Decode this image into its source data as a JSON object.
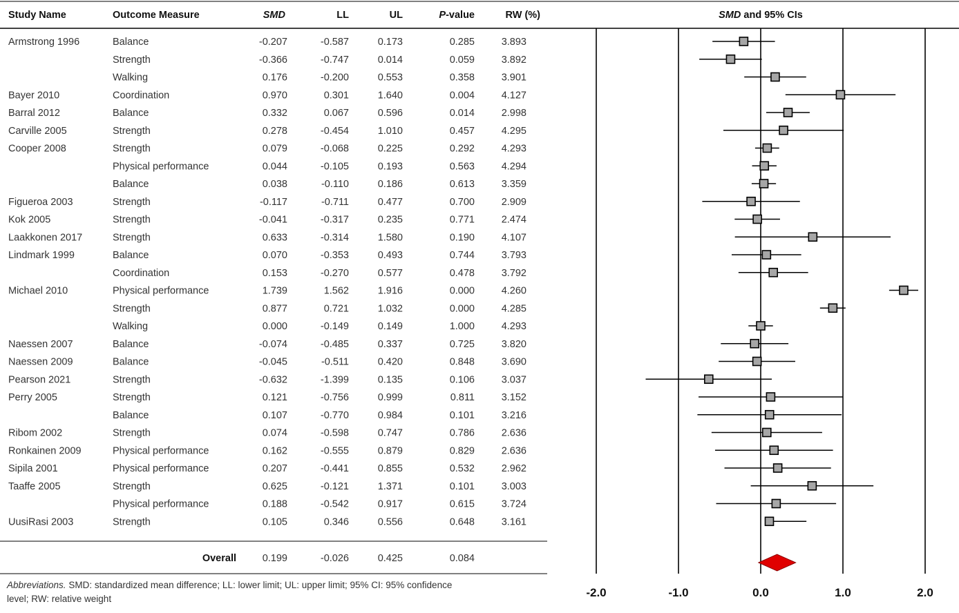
{
  "table": {
    "headers": {
      "study": "Study Name",
      "outcome": "Outcome Measure",
      "smd": "SMD",
      "ll": "LL",
      "ul": "UL",
      "p": "P",
      "p_suffix": "-value",
      "rw": "RW (%)",
      "plot_smd": "SMD",
      "plot_rest": " and 95% CIs"
    },
    "overall_label": "Overall"
  },
  "footnote": {
    "abbr_label": "Abbreviations.",
    "text": " SMD: standardized mean difference; LL: lower limit; UL: upper limit; 95% CI: 95% confidence level; RW: relative weight"
  },
  "colors": {
    "marker_fill": "#a6a6a6",
    "diamond": "#e00000",
    "line": "#000000"
  },
  "chart_data": {
    "type": "forest",
    "xlim": [
      -2.0,
      2.0
    ],
    "xticks": [
      "-2.0",
      "-1.0",
      "0.0",
      "1.0",
      "2.0"
    ],
    "tick_values": [
      -2.0,
      -1.0,
      0.0,
      1.0,
      2.0
    ],
    "grid": "vertical lines at ticks",
    "rows": [
      {
        "study": "Armstrong 1996",
        "outcome": "Balance",
        "smd": -0.207,
        "ll": -0.587,
        "ul": 0.173,
        "p": 0.285,
        "rw": 3.893
      },
      {
        "study": "",
        "outcome": "Strength",
        "smd": -0.366,
        "ll": -0.747,
        "ul": 0.014,
        "p": 0.059,
        "rw": 3.892
      },
      {
        "study": "",
        "outcome": "Walking",
        "smd": 0.176,
        "ll": -0.2,
        "ul": 0.553,
        "p": 0.358,
        "rw": 3.901
      },
      {
        "study": "Bayer 2010",
        "outcome": "Coordination",
        "smd": 0.97,
        "ll": 0.301,
        "ul": 1.64,
        "p": 0.004,
        "rw": 4.127
      },
      {
        "study": "Barral 2012",
        "outcome": "Balance",
        "smd": 0.332,
        "ll": 0.067,
        "ul": 0.596,
        "p": 0.014,
        "rw": 2.998
      },
      {
        "study": "Carville 2005",
        "outcome": "Strength",
        "smd": 0.278,
        "ll": -0.454,
        "ul": 1.01,
        "p": 0.457,
        "rw": 4.295
      },
      {
        "study": "Cooper 2008",
        "outcome": "Strength",
        "smd": 0.079,
        "ll": -0.068,
        "ul": 0.225,
        "p": 0.292,
        "rw": 4.293
      },
      {
        "study": "",
        "outcome": "Physical performance",
        "smd": 0.044,
        "ll": -0.105,
        "ul": 0.193,
        "p": 0.563,
        "rw": 4.294
      },
      {
        "study": "",
        "outcome": "Balance",
        "smd": 0.038,
        "ll": -0.11,
        "ul": 0.186,
        "p": 0.613,
        "rw": 3.359
      },
      {
        "study": "Figueroa 2003",
        "outcome": "Strength",
        "smd": -0.117,
        "ll": -0.711,
        "ul": 0.477,
        "p": 0.7,
        "rw": 2.909
      },
      {
        "study": "Kok 2005",
        "outcome": "Strength",
        "smd": -0.041,
        "ll": -0.317,
        "ul": 0.235,
        "p": 0.771,
        "rw": 2.474
      },
      {
        "study": "Laakkonen 2017",
        "outcome": "Strength",
        "smd": 0.633,
        "ll": -0.314,
        "ul": 1.58,
        "p": 0.19,
        "rw": 4.107
      },
      {
        "study": "Lindmark 1999",
        "outcome": "Balance",
        "smd": 0.07,
        "ll": -0.353,
        "ul": 0.493,
        "p": 0.744,
        "rw": 3.793
      },
      {
        "study": "",
        "outcome": "Coordination",
        "smd": 0.153,
        "ll": -0.27,
        "ul": 0.577,
        "p": 0.478,
        "rw": 3.792
      },
      {
        "study": "Michael 2010",
        "outcome": "Physical performance",
        "smd": 1.739,
        "ll": 1.562,
        "ul": 1.916,
        "p": 0.0,
        "rw": 4.26
      },
      {
        "study": "",
        "outcome": "Strength",
        "smd": 0.877,
        "ll": 0.721,
        "ul": 1.032,
        "p": 0.0,
        "rw": 4.285
      },
      {
        "study": "",
        "outcome": "Walking",
        "smd": 0.0,
        "ll": -0.149,
        "ul": 0.149,
        "p": 1.0,
        "rw": 4.293
      },
      {
        "study": "Naessen 2007",
        "outcome": "Balance",
        "smd": -0.074,
        "ll": -0.485,
        "ul": 0.337,
        "p": 0.725,
        "rw": 3.82
      },
      {
        "study": "Naessen 2009",
        "outcome": "Balance",
        "smd": -0.045,
        "ll": -0.511,
        "ul": 0.42,
        "p": 0.848,
        "rw": 3.69
      },
      {
        "study": "Pearson 2021",
        "outcome": "Strength",
        "smd": -0.632,
        "ll": -1.399,
        "ul": 0.135,
        "p": 0.106,
        "rw": 3.037
      },
      {
        "study": "Perry 2005",
        "outcome": "Strength",
        "smd": 0.121,
        "ll": -0.756,
        "ul": 0.999,
        "p": 0.811,
        "rw": 3.152
      },
      {
        "study": "",
        "outcome": "Balance",
        "smd": 0.107,
        "ll": -0.77,
        "ul": 0.984,
        "p": 0.101,
        "rw": 3.216
      },
      {
        "study": "Ribom 2002",
        "outcome": "Strength",
        "smd": 0.074,
        "ll": -0.598,
        "ul": 0.747,
        "p": 0.786,
        "rw": 2.636
      },
      {
        "study": "Ronkainen 2009",
        "outcome": "Physical performance",
        "smd": 0.162,
        "ll": -0.555,
        "ul": 0.879,
        "p": 0.829,
        "rw": 2.636
      },
      {
        "study": "Sipila 2001",
        "outcome": "Physical performance",
        "smd": 0.207,
        "ll": -0.441,
        "ul": 0.855,
        "p": 0.532,
        "rw": 2.962
      },
      {
        "study": "Taaffe 2005",
        "outcome": "Strength",
        "smd": 0.625,
        "ll": -0.121,
        "ul": 1.371,
        "p": 0.101,
        "rw": 3.003
      },
      {
        "study": "",
        "outcome": "Physical performance",
        "smd": 0.188,
        "ll": -0.542,
        "ul": 0.917,
        "p": 0.615,
        "rw": 3.724
      },
      {
        "study": "UusiRasi 2003",
        "outcome": "Strength",
        "smd": 0.105,
        "ll": 0.346,
        "ul": 0.556,
        "p": 0.648,
        "rw": 3.161
      }
    ],
    "overall": {
      "smd": 0.199,
      "ll": -0.026,
      "ul": 0.425,
      "p": 0.084
    }
  }
}
